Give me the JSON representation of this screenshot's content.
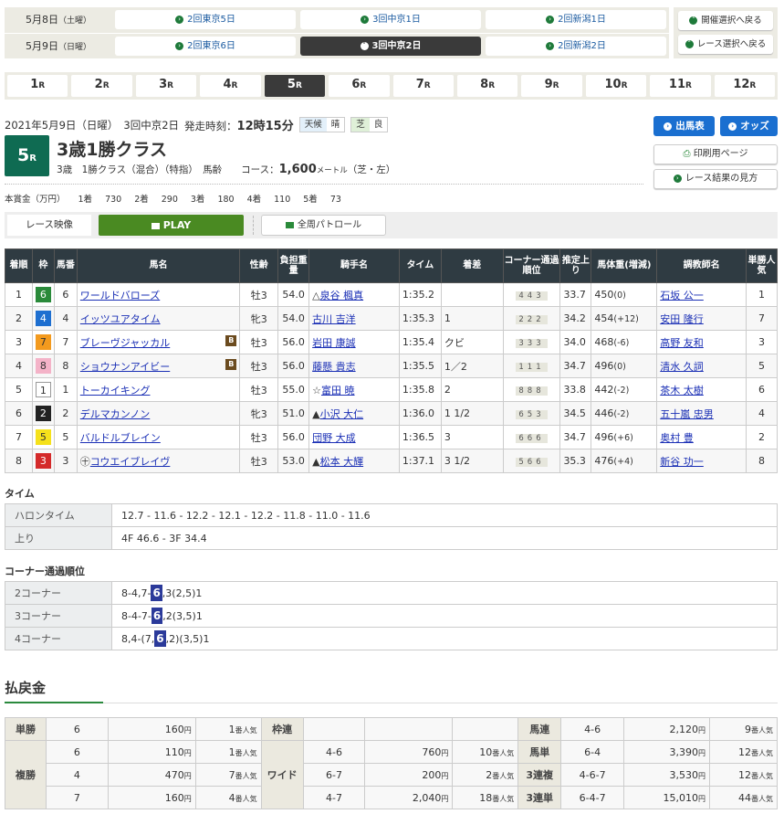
{
  "meeting_nav": {
    "days": [
      {
        "date": "5月8日",
        "dow": "（土曜）",
        "meetings": [
          "2回東京5日",
          "3回中京1日",
          "2回新潟1日"
        ]
      },
      {
        "date": "5月9日",
        "dow": "（日曜）",
        "meetings": [
          "2回東京6日",
          "3回中京2日",
          "2回新潟2日"
        ],
        "selected": 1
      }
    ],
    "back_to_meeting": "開催選択へ戻る",
    "back_to_race": "レース選択へ戻る"
  },
  "race_nav": {
    "races": [
      "1",
      "2",
      "3",
      "4",
      "5",
      "6",
      "7",
      "8",
      "9",
      "10",
      "11",
      "12"
    ],
    "suffix": "R",
    "selected": "5"
  },
  "race": {
    "date": "2021年5月9日（日曜）",
    "meeting": "3回中京2日",
    "start_label": "発走時刻：",
    "start_time": "12時15分",
    "weather_label": "天候",
    "weather": "晴",
    "track_label": "芝",
    "track_condition": "良",
    "number": "5",
    "number_suffix": "R",
    "title": "3歳1勝クラス",
    "conditions": "3歳　1勝クラス（混合）（特指）　馬齢",
    "course_label": "コース：",
    "distance": "1,600",
    "distance_unit": "メートル",
    "course_detail": "（芝・左）",
    "prize_label": "本賞金（万円）",
    "prizes": [
      {
        "place": "1着",
        "value": "730"
      },
      {
        "place": "2着",
        "value": "290"
      },
      {
        "place": "3着",
        "value": "180"
      },
      {
        "place": "4着",
        "value": "110"
      },
      {
        "place": "5着",
        "value": "73"
      }
    ]
  },
  "actions": {
    "entries": "出馬表",
    "odds": "オッズ",
    "print": "印刷用ページ",
    "howto": "レース結果の見方"
  },
  "video": {
    "label": "レース映像",
    "play": "PLAY",
    "patrol": "全周パトロール"
  },
  "results": {
    "headers": [
      "着順",
      "枠",
      "馬番",
      "馬名",
      "性齢",
      "負担重量",
      "騎手名",
      "タイム",
      "着差",
      "コーナー通過順位",
      "推定上り",
      "馬体重(増減)",
      "調教師名",
      "単勝人気"
    ],
    "rows": [
      {
        "place": "1",
        "waku": "6",
        "num": "6",
        "horse": "ワールドバローズ",
        "prefix": "",
        "blinker": false,
        "sexage": "牡3",
        "weight": "54.0",
        "jmark": "△",
        "jockey": "泉谷 楓真",
        "time": "1:35.2",
        "margin": "",
        "corners": [
          "4",
          "4",
          "3"
        ],
        "last3f": "33.7",
        "bw": "450",
        "bwd": "(0)",
        "trainer": "石坂 公一",
        "pop": "1"
      },
      {
        "place": "2",
        "waku": "4",
        "num": "4",
        "horse": "イッツユアタイム",
        "prefix": "",
        "blinker": false,
        "sexage": "牝3",
        "weight": "54.0",
        "jmark": "",
        "jockey": "古川 吉洋",
        "time": "1:35.3",
        "margin": "1",
        "corners": [
          "2",
          "2",
          "2"
        ],
        "last3f": "34.2",
        "bw": "454",
        "bwd": "(+12)",
        "trainer": "安田 隆行",
        "pop": "7"
      },
      {
        "place": "3",
        "waku": "7",
        "num": "7",
        "horse": "ブレーヴジャッカル",
        "prefix": "",
        "blinker": true,
        "sexage": "牡3",
        "weight": "56.0",
        "jmark": "",
        "jockey": "岩田 康誠",
        "time": "1:35.4",
        "margin": "クビ",
        "corners": [
          "3",
          "3",
          "3"
        ],
        "last3f": "34.0",
        "bw": "468",
        "bwd": "(-6)",
        "trainer": "高野 友和",
        "pop": "3"
      },
      {
        "place": "4",
        "waku": "8",
        "num": "8",
        "horse": "ショウナンアイビー",
        "prefix": "",
        "blinker": true,
        "sexage": "牡3",
        "weight": "56.0",
        "jmark": "",
        "jockey": "藤懸 貴志",
        "time": "1:35.5",
        "margin": "1／2",
        "corners": [
          "1",
          "1",
          "1"
        ],
        "last3f": "34.7",
        "bw": "496",
        "bwd": "(0)",
        "trainer": "清水 久詞",
        "pop": "5"
      },
      {
        "place": "5",
        "waku": "1",
        "num": "1",
        "horse": "トーカイキング",
        "prefix": "",
        "blinker": false,
        "sexage": "牡3",
        "weight": "55.0",
        "jmark": "☆",
        "jockey": "富田 暁",
        "time": "1:35.8",
        "margin": "2",
        "corners": [
          "8",
          "8",
          "8"
        ],
        "last3f": "33.8",
        "bw": "442",
        "bwd": "(-2)",
        "trainer": "茶木 太樹",
        "pop": "6"
      },
      {
        "place": "6",
        "waku": "2",
        "num": "2",
        "horse": "デルマカンノン",
        "prefix": "",
        "blinker": false,
        "sexage": "牝3",
        "weight": "51.0",
        "jmark": "▲",
        "jockey": "小沢 大仁",
        "time": "1:36.0",
        "margin": "1 1/2",
        "corners": [
          "6",
          "5",
          "3"
        ],
        "last3f": "34.5",
        "bw": "446",
        "bwd": "(-2)",
        "trainer": "五十嵐 忠男",
        "pop": "4"
      },
      {
        "place": "7",
        "waku": "5",
        "num": "5",
        "horse": "バルドルブレイン",
        "prefix": "",
        "blinker": false,
        "sexage": "牡3",
        "weight": "56.0",
        "jmark": "",
        "jockey": "団野 大成",
        "time": "1:36.5",
        "margin": "3",
        "corners": [
          "6",
          "6",
          "6"
        ],
        "last3f": "34.7",
        "bw": "496",
        "bwd": "(+6)",
        "trainer": "奥村 豊",
        "pop": "2"
      },
      {
        "place": "8",
        "waku": "3",
        "num": "3",
        "horse": "コウエイブレイヴ",
        "prefix": "㊉",
        "blinker": false,
        "sexage": "牡3",
        "weight": "53.0",
        "jmark": "▲",
        "jockey": "松本 大輝",
        "time": "1:37.1",
        "margin": "3 1/2",
        "corners": [
          "5",
          "6",
          "6"
        ],
        "last3f": "35.3",
        "bw": "476",
        "bwd": "(+4)",
        "trainer": "新谷 功一",
        "pop": "8"
      }
    ],
    "blinker_label": "B"
  },
  "waku_colors": {
    "1": [
      "#ffffff",
      "#333333"
    ],
    "2": [
      "#222222",
      "#ffffff"
    ],
    "3": [
      "#d42a2a",
      "#ffffff"
    ],
    "4": [
      "#1e6fd0",
      "#ffffff"
    ],
    "5": [
      "#f5e11b",
      "#333333"
    ],
    "6": [
      "#2a8a3a",
      "#ffffff"
    ],
    "7": [
      "#f39a1e",
      "#333333"
    ],
    "8": [
      "#f4b3c8",
      "#333333"
    ]
  },
  "time_section": {
    "heading": "タイム",
    "rows": [
      {
        "label": "ハロンタイム",
        "value": "12.7 - 11.6 - 12.2 - 12.1 - 12.2 - 11.8 - 11.0 - 11.6"
      },
      {
        "label": "上り",
        "value": "4F 46.6 - 3F 34.4"
      }
    ]
  },
  "corner_section": {
    "heading": "コーナー通過順位",
    "rows": [
      {
        "label": "2コーナー",
        "before": "8-4,7-",
        "hl": "6",
        "after": ",3(2,5)1"
      },
      {
        "label": "3コーナー",
        "before": "8-4-7-",
        "hl": "6",
        "after": ",2(3,5)1"
      },
      {
        "label": "4コーナー",
        "before": "8,4-(7,",
        "hl": "6",
        "after": ",2)(3,5)1"
      }
    ]
  },
  "payout": {
    "heading": "払戻金",
    "yen": "円",
    "ninki": "番人気",
    "tansho": {
      "label": "単勝",
      "num": "6",
      "amount": "160",
      "pop": "1"
    },
    "fukusho": {
      "label": "複勝",
      "rows": [
        {
          "num": "6",
          "amount": "110",
          "pop": "1"
        },
        {
          "num": "4",
          "amount": "470",
          "pop": "7"
        },
        {
          "num": "7",
          "amount": "160",
          "pop": "4"
        }
      ]
    },
    "wakuren": {
      "label": "枠連"
    },
    "wide": {
      "label": "ワイド",
      "rows": [
        {
          "num": "4-6",
          "amount": "760",
          "pop": "10"
        },
        {
          "num": "6-7",
          "amount": "200",
          "pop": "2"
        },
        {
          "num": "4-7",
          "amount": "2,040",
          "pop": "18"
        }
      ]
    },
    "umaren": {
      "label": "馬連",
      "num": "4-6",
      "amount": "2,120",
      "pop": "9"
    },
    "umatan": {
      "label": "馬単",
      "num": "6-4",
      "amount": "3,390",
      "pop": "12"
    },
    "trio": {
      "label": "3連複",
      "num": "4-6-7",
      "amount": "3,530",
      "pop": "12"
    },
    "trifecta": {
      "label": "3連単",
      "num": "6-4-7",
      "amount": "15,010",
      "pop": "44"
    }
  }
}
